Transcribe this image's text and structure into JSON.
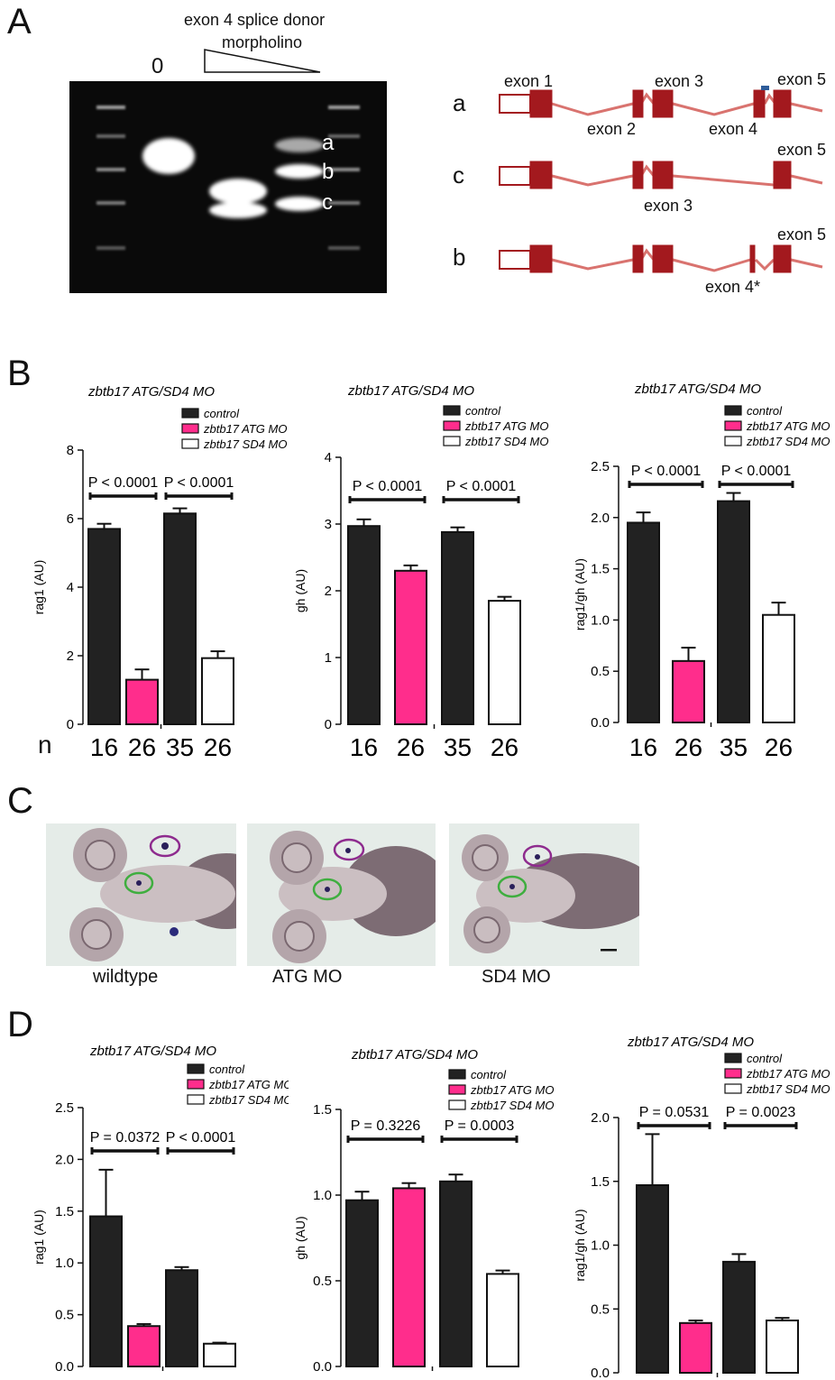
{
  "panel_labels": {
    "a": "A",
    "b": "B",
    "c": "C",
    "d": "D"
  },
  "gel": {
    "treatment_label_line1": "exon 4 splice donor",
    "treatment_label_line2": "morpholino",
    "lane0_label": "0",
    "band_labels": [
      "a",
      "b",
      "c"
    ]
  },
  "splice_diagram": {
    "rows": [
      {
        "label": "a",
        "exon_labels": [
          "exon 1",
          "exon 2",
          "exon 3",
          "exon 4",
          "exon 5"
        ]
      },
      {
        "label": "c",
        "exon_labels": [
          "exon 3",
          "exon 5"
        ]
      },
      {
        "label": "b",
        "exon_labels": [
          "exon 4*",
          "exon 5"
        ]
      }
    ],
    "colors": {
      "exon": "#a3191e",
      "intron_line": "#d9736f",
      "morpholino_mark": "#2e5c99"
    }
  },
  "embryo_images": {
    "labels": [
      "wildtype",
      "ATG MO",
      "SD4 MO"
    ],
    "circle_colors": {
      "upper": "#8e2b8e",
      "lower": "#3fae3f"
    }
  },
  "n_row": {
    "label": "n",
    "values": [
      "16",
      "26",
      "35",
      "26"
    ]
  },
  "legend": [
    "control",
    "zbtb17 ATG MO",
    "zbtb17 SD4 MO"
  ],
  "colors": {
    "control": "#222222",
    "atg": "#ff2d8c",
    "sd4": "#ffffff"
  },
  "chart_data": [
    {
      "id": "B1",
      "type": "bar",
      "title": "zbtb17 ATG/SD4 MO",
      "ylabel": "rag1 (AU)",
      "ylim": [
        0,
        8
      ],
      "yticks": [
        "0",
        "2",
        "4",
        "6",
        "8"
      ],
      "categories": [
        "control",
        "zbtb17 ATG MO",
        "control",
        "zbtb17 SD4 MO"
      ],
      "values": [
        5.7,
        1.3,
        6.15,
        1.93
      ],
      "errors": [
        0.15,
        0.3,
        0.15,
        0.2
      ],
      "pvalues": [
        {
          "from": 0,
          "to": 1,
          "label": "P < 0.0001"
        },
        {
          "from": 2,
          "to": 3,
          "label": "P < 0.0001"
        }
      ]
    },
    {
      "id": "B2",
      "type": "bar",
      "title": "zbtb17 ATG/SD4 MO",
      "ylabel": "gh (AU)",
      "ylim": [
        0,
        4
      ],
      "yticks": [
        "0",
        "1",
        "2",
        "3",
        "4"
      ],
      "categories": [
        "control",
        "zbtb17 ATG MO",
        "control",
        "zbtb17 SD4 MO"
      ],
      "values": [
        2.97,
        2.3,
        2.88,
        1.85
      ],
      "errors": [
        0.1,
        0.08,
        0.07,
        0.06
      ],
      "pvalues": [
        {
          "from": 0,
          "to": 1,
          "label": "P < 0.0001"
        },
        {
          "from": 2,
          "to": 3,
          "label": "P < 0.0001"
        }
      ]
    },
    {
      "id": "B3",
      "type": "bar",
      "title": "zbtb17 ATG/SD4 MO",
      "ylabel": "rag1/gh (AU)",
      "ylim": [
        0,
        2.5
      ],
      "yticks": [
        "0.0",
        "0.5",
        "1.0",
        "1.5",
        "2.0",
        "2.5"
      ],
      "categories": [
        "control",
        "zbtb17 ATG MO",
        "control",
        "zbtb17 SD4 MO"
      ],
      "values": [
        1.95,
        0.6,
        2.16,
        1.05
      ],
      "errors": [
        0.1,
        0.13,
        0.08,
        0.12
      ],
      "pvalues": [
        {
          "from": 0,
          "to": 1,
          "label": "P < 0.0001"
        },
        {
          "from": 2,
          "to": 3,
          "label": "P < 0.0001"
        }
      ]
    },
    {
      "id": "D1",
      "type": "bar",
      "title": "zbtb17 ATG/SD4 MO",
      "ylabel": "rag1 (AU)",
      "ylim": [
        0,
        2.5
      ],
      "yticks": [
        "0.0",
        "0.5",
        "1.0",
        "1.5",
        "2.0",
        "2.5"
      ],
      "categories": [
        "control",
        "zbtb17 ATG MO",
        "control",
        "zbtb17 SD4 MO"
      ],
      "values": [
        1.45,
        0.39,
        0.93,
        0.22
      ],
      "errors": [
        0.45,
        0.02,
        0.03,
        0.01
      ],
      "pvalues": [
        {
          "from": 0,
          "to": 1,
          "label": "P = 0.0372"
        },
        {
          "from": 2,
          "to": 3,
          "label": "P < 0.0001"
        }
      ]
    },
    {
      "id": "D2",
      "type": "bar",
      "title": "zbtb17 ATG/SD4 MO",
      "ylabel": "gh (AU)",
      "ylim": [
        0,
        1.5
      ],
      "yticks": [
        "0.0",
        "0.5",
        "1.0",
        "1.5"
      ],
      "categories": [
        "control",
        "zbtb17 ATG MO",
        "control",
        "zbtb17 SD4 MO"
      ],
      "values": [
        0.97,
        1.04,
        1.08,
        0.54
      ],
      "errors": [
        0.05,
        0.03,
        0.04,
        0.02
      ],
      "pvalues": [
        {
          "from": 0,
          "to": 1,
          "label": "P = 0.3226"
        },
        {
          "from": 2,
          "to": 3,
          "label": "P = 0.0003"
        }
      ]
    },
    {
      "id": "D3",
      "type": "bar",
      "title": "zbtb17 ATG/SD4 MO",
      "ylabel": "rag1/gh (AU)",
      "ylim": [
        0,
        2.0
      ],
      "yticks": [
        "0.0",
        "0.5",
        "1.0",
        "1.5",
        "2.0"
      ],
      "categories": [
        "control",
        "zbtb17 ATG MO",
        "control",
        "zbtb17 SD4 MO"
      ],
      "values": [
        1.47,
        0.39,
        0.87,
        0.41
      ],
      "errors": [
        0.4,
        0.02,
        0.06,
        0.02
      ],
      "pvalues": [
        {
          "from": 0,
          "to": 1,
          "label": "P = 0.0531"
        },
        {
          "from": 2,
          "to": 3,
          "label": "P = 0.0023"
        }
      ]
    }
  ]
}
